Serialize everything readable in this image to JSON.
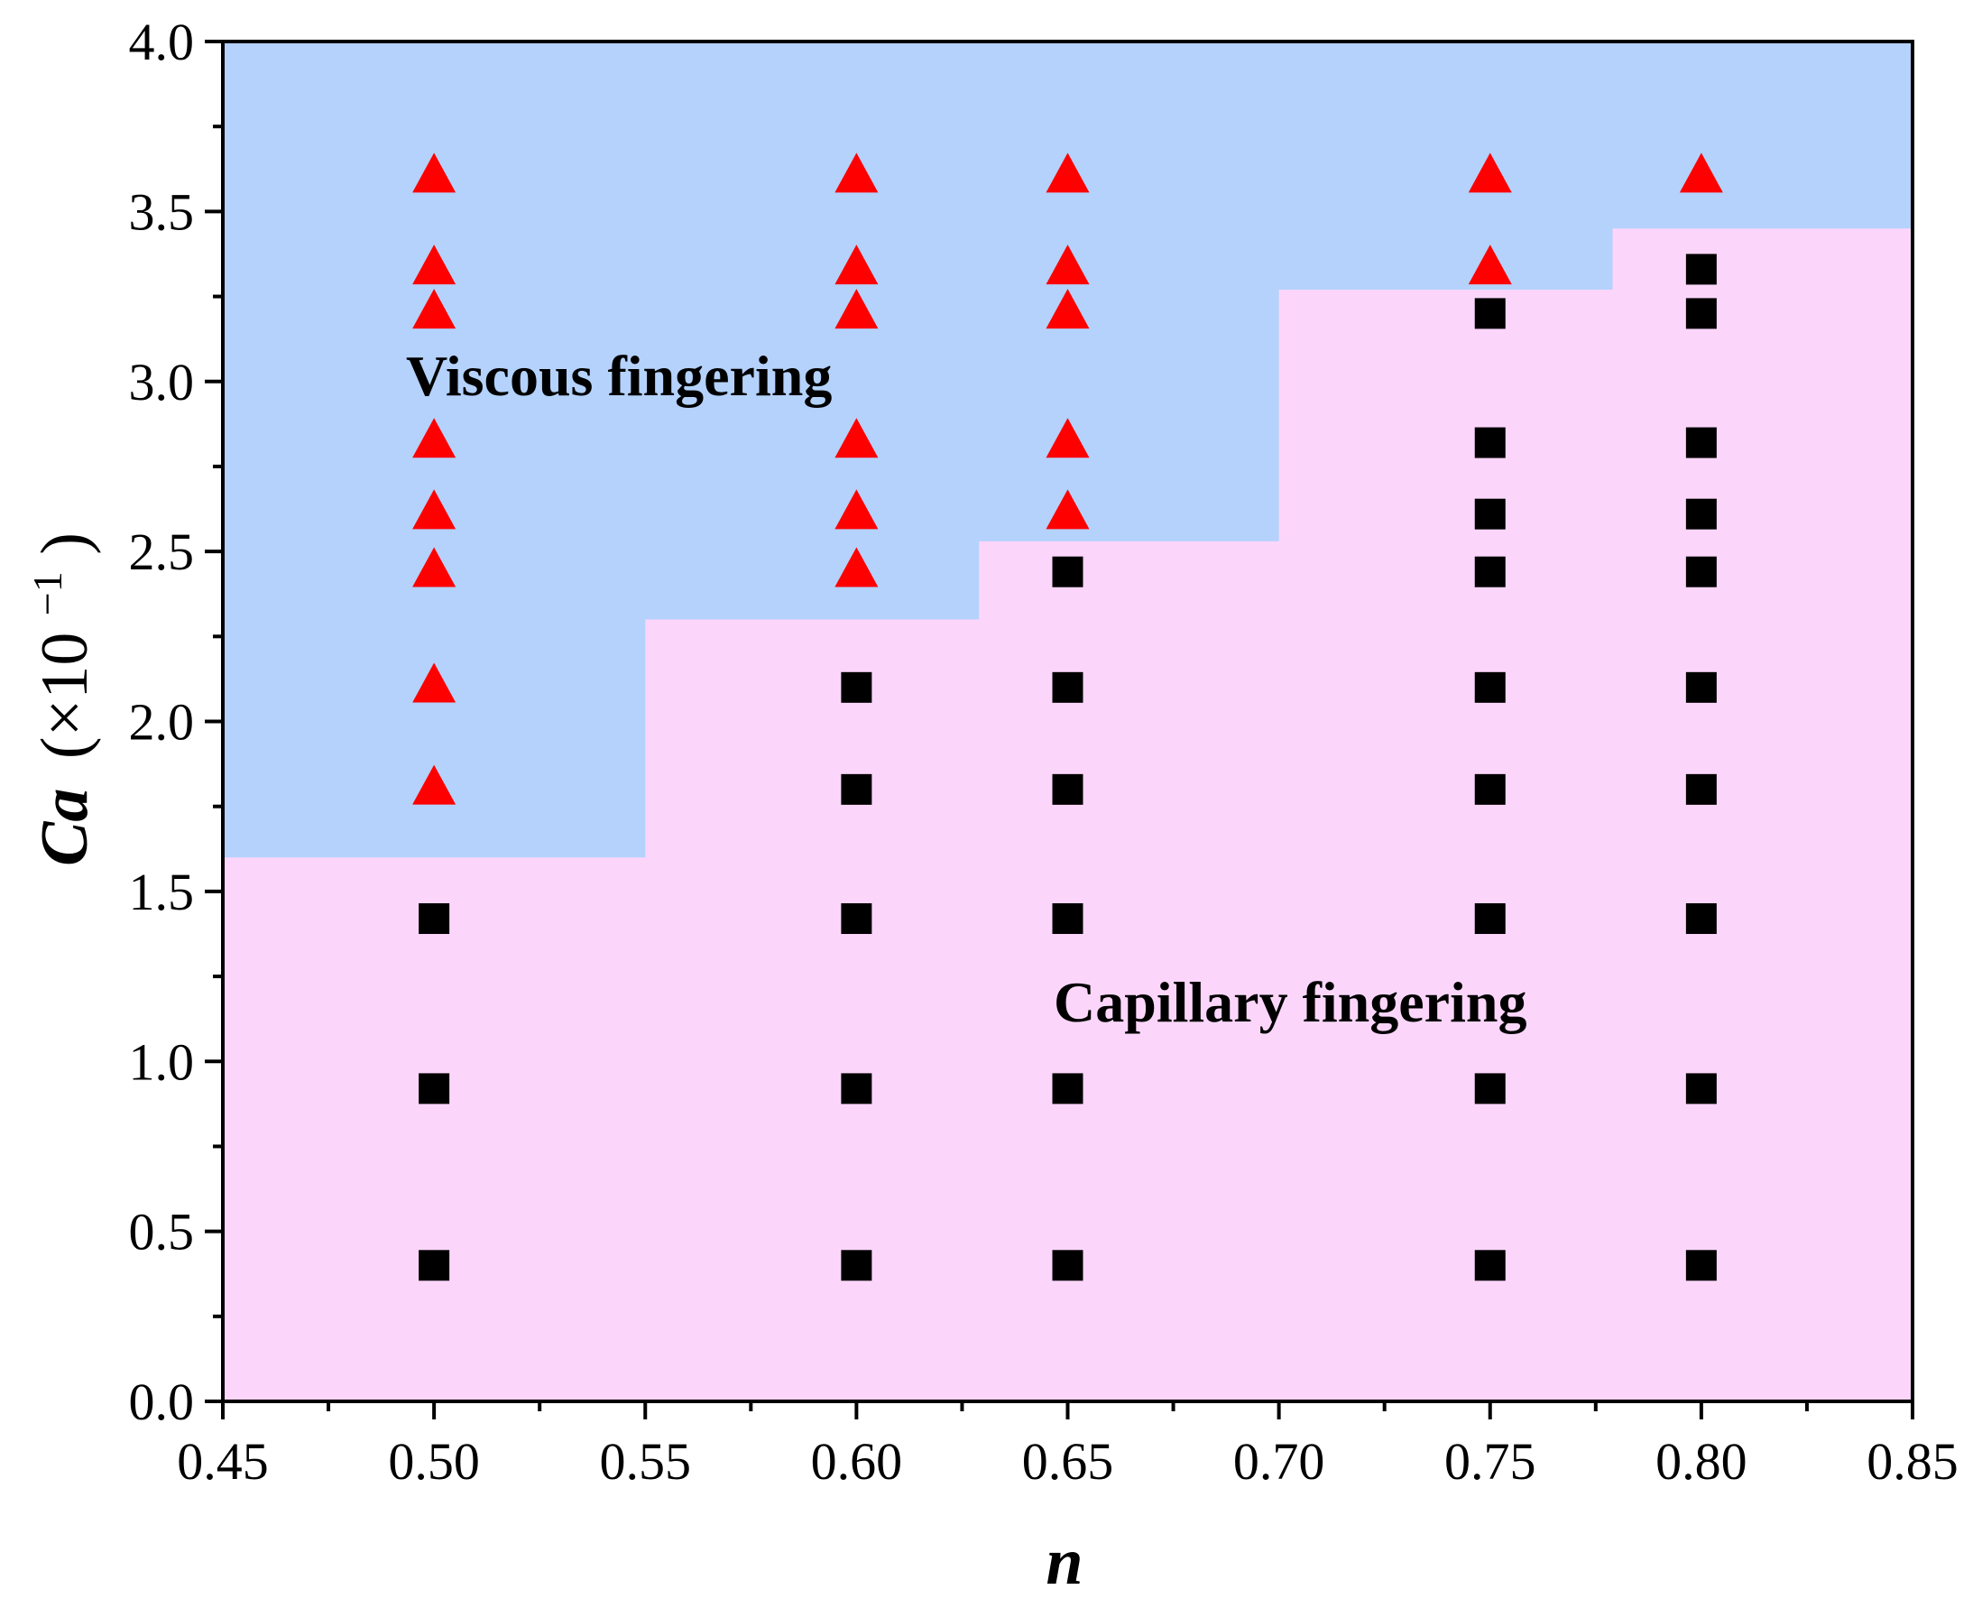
{
  "chart_data": {
    "type": "scatter",
    "xlabel": "n",
    "ylabel_main": "Ca",
    "ylabel_unit": "(×10",
    "ylabel_exp": "−1",
    "ylabel_close": ")",
    "xlim": [
      0.45,
      0.85
    ],
    "ylim": [
      0.0,
      4.0
    ],
    "x_ticks": [
      "0.45",
      "0.50",
      "0.55",
      "0.60",
      "0.65",
      "0.70",
      "0.75",
      "0.80",
      "0.85"
    ],
    "y_ticks": [
      "0.0",
      "0.5",
      "1.0",
      "1.5",
      "2.0",
      "2.5",
      "3.0",
      "3.5",
      "4.0"
    ],
    "regions": [
      {
        "label": "Viscous fingering",
        "color": "#b4d2fc"
      },
      {
        "label": "Capillary fingering",
        "color": "#fcd6fa"
      }
    ],
    "boundary": [
      {
        "x": 0.45,
        "y": 1.6
      },
      {
        "x": 0.55,
        "y": 1.6
      },
      {
        "x": 0.55,
        "y": 2.3
      },
      {
        "x": 0.629,
        "y": 2.3
      },
      {
        "x": 0.629,
        "y": 2.53
      },
      {
        "x": 0.7,
        "y": 2.53
      },
      {
        "x": 0.7,
        "y": 3.27
      },
      {
        "x": 0.779,
        "y": 3.27
      },
      {
        "x": 0.779,
        "y": 3.45
      },
      {
        "x": 0.85,
        "y": 3.45
      }
    ],
    "series": [
      {
        "marker": "triangle",
        "color": "#ff0000",
        "points": [
          {
            "x": 0.5,
            "y": 3.6
          },
          {
            "x": 0.5,
            "y": 3.33
          },
          {
            "x": 0.5,
            "y": 3.2
          },
          {
            "x": 0.5,
            "y": 2.82
          },
          {
            "x": 0.5,
            "y": 2.61
          },
          {
            "x": 0.5,
            "y": 2.44
          },
          {
            "x": 0.5,
            "y": 2.1
          },
          {
            "x": 0.5,
            "y": 1.8
          },
          {
            "x": 0.6,
            "y": 3.6
          },
          {
            "x": 0.6,
            "y": 3.33
          },
          {
            "x": 0.6,
            "y": 3.2
          },
          {
            "x": 0.6,
            "y": 2.82
          },
          {
            "x": 0.6,
            "y": 2.61
          },
          {
            "x": 0.6,
            "y": 2.44
          },
          {
            "x": 0.65,
            "y": 3.6
          },
          {
            "x": 0.65,
            "y": 3.33
          },
          {
            "x": 0.65,
            "y": 3.2
          },
          {
            "x": 0.65,
            "y": 2.82
          },
          {
            "x": 0.65,
            "y": 2.61
          },
          {
            "x": 0.75,
            "y": 3.6
          },
          {
            "x": 0.75,
            "y": 3.33
          },
          {
            "x": 0.8,
            "y": 3.6
          }
        ]
      },
      {
        "marker": "square",
        "color": "#000000",
        "points": [
          {
            "x": 0.5,
            "y": 1.42
          },
          {
            "x": 0.5,
            "y": 0.92
          },
          {
            "x": 0.5,
            "y": 0.4
          },
          {
            "x": 0.6,
            "y": 2.1
          },
          {
            "x": 0.6,
            "y": 1.8
          },
          {
            "x": 0.6,
            "y": 1.42
          },
          {
            "x": 0.6,
            "y": 0.92
          },
          {
            "x": 0.6,
            "y": 0.4
          },
          {
            "x": 0.65,
            "y": 2.44
          },
          {
            "x": 0.65,
            "y": 2.1
          },
          {
            "x": 0.65,
            "y": 1.8
          },
          {
            "x": 0.65,
            "y": 1.42
          },
          {
            "x": 0.65,
            "y": 0.92
          },
          {
            "x": 0.65,
            "y": 0.4
          },
          {
            "x": 0.75,
            "y": 3.2
          },
          {
            "x": 0.75,
            "y": 2.82
          },
          {
            "x": 0.75,
            "y": 2.61
          },
          {
            "x": 0.75,
            "y": 2.44
          },
          {
            "x": 0.75,
            "y": 2.1
          },
          {
            "x": 0.75,
            "y": 1.8
          },
          {
            "x": 0.75,
            "y": 1.42
          },
          {
            "x": 0.75,
            "y": 0.92
          },
          {
            "x": 0.75,
            "y": 0.4
          },
          {
            "x": 0.8,
            "y": 3.33
          },
          {
            "x": 0.8,
            "y": 3.2
          },
          {
            "x": 0.8,
            "y": 2.82
          },
          {
            "x": 0.8,
            "y": 2.61
          },
          {
            "x": 0.8,
            "y": 2.44
          },
          {
            "x": 0.8,
            "y": 2.1
          },
          {
            "x": 0.8,
            "y": 1.8
          },
          {
            "x": 0.8,
            "y": 1.42
          },
          {
            "x": 0.8,
            "y": 0.92
          },
          {
            "x": 0.8,
            "y": 0.4
          }
        ]
      }
    ]
  }
}
